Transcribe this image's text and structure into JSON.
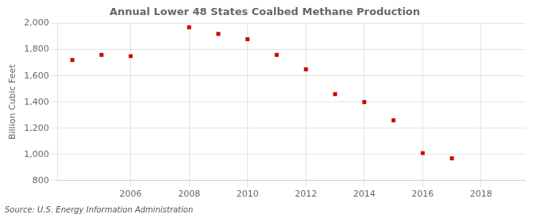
{
  "chart_data": {
    "type": "scatter",
    "title": "Annual Lower 48 States Coalbed Methane Production",
    "ylabel": "Billion Cubic Feet",
    "annotations": [
      "Source: U.S. Energy Information Administration"
    ],
    "x": [
      2004,
      2005,
      2006,
      2008,
      2009,
      2010,
      2011,
      2012,
      2013,
      2014,
      2015,
      2016,
      2017
    ],
    "values": [
      1720,
      1760,
      1750,
      1970,
      1920,
      1880,
      1760,
      1650,
      1460,
      1400,
      1260,
      1010,
      970
    ],
    "color": "#CC0000",
    "marker": "square",
    "xlim": [
      2003.5,
      2019.5
    ],
    "xticks": [
      2006,
      2008,
      2010,
      2012,
      2014,
      2016,
      2018
    ],
    "ylim": [
      800,
      2000
    ],
    "yticks": [
      800,
      {
        "value": 1000,
        "label": "1,000"
      },
      {
        "value": 1200,
        "label": "1,200"
      },
      {
        "value": 1400,
        "label": "1,400"
      },
      {
        "value": 1600,
        "label": "1,600"
      },
      {
        "value": 1800,
        "label": "1,800"
      },
      {
        "value": 2000,
        "label": "2,000"
      }
    ],
    "grid": true
  }
}
